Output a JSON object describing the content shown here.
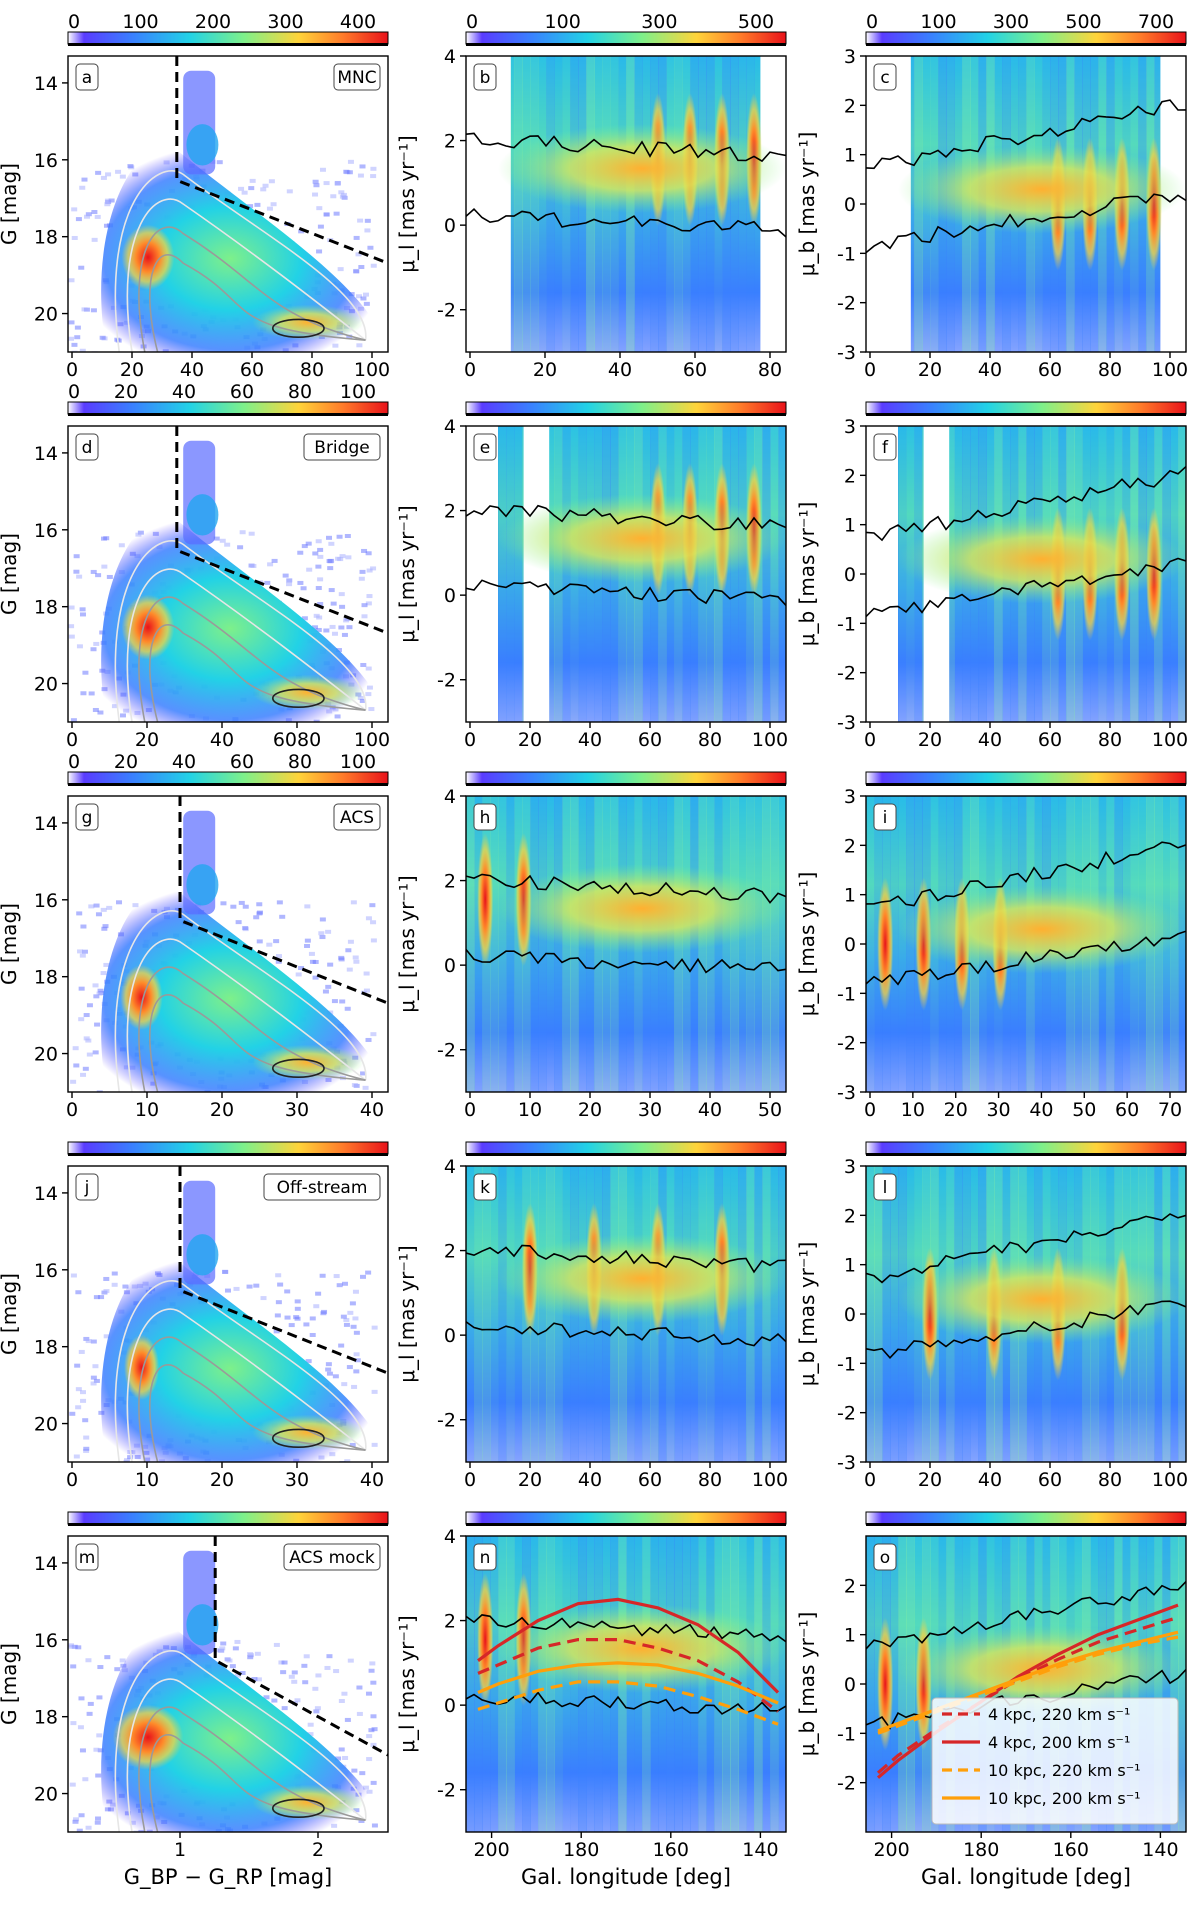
{
  "chart_data": {
    "type": "heatmap",
    "grid": {
      "rows": 5,
      "cols": 3
    },
    "panels": [
      {
        "id": "a",
        "kind": "cmd",
        "label": "MNC",
        "ylabel": "G [mag]",
        "ylim": [
          13.3,
          21
        ],
        "yticks": [
          "14",
          "16",
          "18",
          "20"
        ],
        "cbar_ticks": [
          "0",
          "100",
          "200",
          "300",
          "400"
        ],
        "xticks": [
          "0",
          "20",
          "40",
          "60",
          "80",
          "100"
        ],
        "cut_x": 0.62,
        "blob": 0.15
      },
      {
        "id": "b",
        "kind": "pm",
        "pm": "l",
        "ylabel": "μ_l [mas yr⁻¹]",
        "ylim": [
          -3,
          4
        ],
        "yticks": [
          "-2",
          "0",
          "2",
          "4"
        ],
        "cbar_ticks": [
          "0",
          "100",
          "300",
          "500"
        ],
        "xticks": [
          "0",
          "20",
          "40",
          "60",
          "80"
        ]
      },
      {
        "id": "c",
        "kind": "pm",
        "pm": "b",
        "ylabel": "μ_b [mas yr⁻¹]",
        "ylim": [
          -3,
          3
        ],
        "yticks": [
          "-3",
          "-2",
          "-1",
          "0",
          "1",
          "2",
          "3"
        ],
        "cbar_ticks": [
          "0",
          "100",
          "300",
          "500",
          "700"
        ],
        "xticks": [
          "0",
          "20",
          "40",
          "60",
          "80",
          "100"
        ]
      },
      {
        "id": "d",
        "kind": "cmd",
        "label": "Bridge",
        "ylabel": "G [mag]",
        "ylim": [
          13.3,
          21
        ],
        "yticks": [
          "14",
          "16",
          "18",
          "20"
        ],
        "cbar_ticks": [
          "0",
          "20",
          "40",
          "60",
          "80",
          "100"
        ],
        "xticks": [
          "0",
          "20",
          "40",
          "6080",
          "100"
        ],
        "cut_x": 0.62,
        "blob": 0.15
      },
      {
        "id": "e",
        "kind": "pm",
        "pm": "l",
        "ylabel": "μ_l [mas yr⁻¹]",
        "ylim": [
          -3,
          4
        ],
        "yticks": [
          "-2",
          "0",
          "2",
          "4"
        ],
        "cbar_ticks": [],
        "xticks": [
          "0",
          "20",
          "40",
          "60",
          "80",
          "100"
        ]
      },
      {
        "id": "f",
        "kind": "pm",
        "pm": "b",
        "ylabel": "μ_b [mas yr⁻¹]",
        "ylim": [
          -3,
          3
        ],
        "yticks": [
          "-3",
          "-2",
          "-1",
          "0",
          "1",
          "2",
          "3"
        ],
        "cbar_ticks": [],
        "xticks": [
          "0",
          "20",
          "40",
          "60",
          "80",
          "100"
        ]
      },
      {
        "id": "g",
        "kind": "cmd",
        "label": "ACS",
        "ylabel": "G [mag]",
        "ylim": [
          13.3,
          21
        ],
        "yticks": [
          "14",
          "16",
          "18",
          "20"
        ],
        "cbar_ticks": [
          "0",
          "20",
          "40",
          "60",
          "80",
          "100"
        ],
        "xticks": [
          "0",
          "10",
          "20",
          "30",
          "40"
        ],
        "cut_x": 0.62,
        "blob": 0.12
      },
      {
        "id": "h",
        "kind": "pm",
        "pm": "l",
        "ylabel": "μ_l [mas yr⁻¹]",
        "ylim": [
          -3,
          4
        ],
        "yticks": [
          "-2",
          "0",
          "2",
          "4"
        ],
        "cbar_ticks": [],
        "xticks": [
          "0",
          "10",
          "20",
          "30",
          "40",
          "50"
        ]
      },
      {
        "id": "i",
        "kind": "pm",
        "pm": "b",
        "ylabel": "μ_b [mas yr⁻¹]",
        "ylim": [
          -3,
          3
        ],
        "yticks": [
          "-3",
          "-2",
          "-1",
          "0",
          "1",
          "2",
          "3"
        ],
        "cbar_ticks": [],
        "xticks": [
          "0",
          "10",
          "20",
          "30",
          "40",
          "50",
          "60",
          "70"
        ]
      },
      {
        "id": "j",
        "kind": "cmd",
        "label": "Off-stream",
        "ylabel": "G [mag]",
        "ylim": [
          13.3,
          21
        ],
        "yticks": [
          "14",
          "16",
          "18",
          "20"
        ],
        "cbar_ticks": [],
        "xticks": [
          "0",
          "10",
          "20",
          "30",
          "40"
        ],
        "cut_x": 0.62,
        "blob": 0.1
      },
      {
        "id": "k",
        "kind": "pm",
        "pm": "l",
        "ylabel": "μ_l [mas yr⁻¹]",
        "ylim": [
          -3,
          4
        ],
        "yticks": [
          "-2",
          "0",
          "2",
          "4"
        ],
        "cbar_ticks": [],
        "xticks": [
          "0",
          "20",
          "40",
          "60",
          "80",
          "100"
        ]
      },
      {
        "id": "l",
        "kind": "pm",
        "pm": "b",
        "ylabel": "μ_b [mas yr⁻¹]",
        "ylim": [
          -3,
          3
        ],
        "yticks": [
          "-3",
          "-2",
          "-1",
          "0",
          "1",
          "2",
          "3"
        ],
        "cbar_ticks": [],
        "xticks": [
          "0",
          "20",
          "40",
          "60",
          "80",
          "100"
        ]
      },
      {
        "id": "m",
        "kind": "cmd",
        "label": "ACS mock",
        "ylabel": "G [mag]",
        "ylim": [
          13.3,
          21
        ],
        "yticks": [
          "14",
          "16",
          "18",
          "20"
        ],
        "cbar_ticks": [],
        "xticks": [
          "1",
          "2"
        ],
        "xlabel": "G_BP − G_RP [mag]",
        "cut_x": 0.8,
        "blob": 0.2
      },
      {
        "id": "n",
        "kind": "pm",
        "pm": "l",
        "ylabel": "μ_l [mas yr⁻¹]",
        "ylim": [
          -3,
          4
        ],
        "yticks": [
          "-2",
          "0",
          "2",
          "4"
        ],
        "cbar_ticks": [],
        "xticks": [
          "200",
          "180",
          "160",
          "140"
        ],
        "xlabel": "Gal. longitude [deg]",
        "models": true
      },
      {
        "id": "o",
        "kind": "pm",
        "pm": "b",
        "ylabel": "μ_b [mas yr⁻¹]",
        "ylim": [
          -3,
          3
        ],
        "yticks": [
          "-2",
          "-1",
          "0",
          "1",
          "2"
        ],
        "cbar_ticks": [],
        "xticks": [
          "200",
          "180",
          "160",
          "140"
        ],
        "xlabel": "Gal. longitude [deg]",
        "models": true
      }
    ],
    "legend": {
      "placement": "lower-right of panel o",
      "entries": [
        {
          "label": "4 kpc, 220 km s⁻¹",
          "color": "#d62728",
          "style": "dashed"
        },
        {
          "label": "4 kpc, 200 km s⁻¹",
          "color": "#d62728",
          "style": "solid"
        },
        {
          "label": "10 kpc, 220 km s⁻¹",
          "color": "#ff9f0a",
          "style": "dashed"
        },
        {
          "label": "10 kpc, 200 km s⁻¹",
          "color": "#ff9f0a",
          "style": "solid"
        }
      ]
    },
    "model_curves": {
      "longitude": [
        205,
        200,
        190,
        180,
        170,
        160,
        150,
        140,
        130
      ],
      "mu_l": {
        "4kpc_220": [
          0.75,
          0.95,
          1.35,
          1.55,
          1.55,
          1.35,
          1.05,
          0.55,
          -0.15
        ],
        "4kpc_200": [
          1.05,
          1.4,
          2.0,
          2.4,
          2.5,
          2.3,
          1.9,
          1.25,
          0.3
        ],
        "10kpc_220": [
          -0.1,
          0.05,
          0.35,
          0.55,
          0.55,
          0.45,
          0.2,
          -0.1,
          -0.45
        ],
        "10kpc_200": [
          0.3,
          0.5,
          0.8,
          0.95,
          1.0,
          0.95,
          0.75,
          0.45,
          0.05
        ]
      },
      "mu_b": {
        "4kpc_220": [
          -1.8,
          -1.45,
          -0.9,
          -0.4,
          0.1,
          0.5,
          0.85,
          1.1,
          1.35
        ],
        "4kpc_200": [
          -1.9,
          -1.55,
          -0.95,
          -0.4,
          0.15,
          0.6,
          1.0,
          1.3,
          1.6
        ],
        "10kpc_220": [
          -1.0,
          -0.85,
          -0.55,
          -0.25,
          0.05,
          0.35,
          0.6,
          0.8,
          0.95
        ],
        "10kpc_200": [
          -0.95,
          -0.8,
          -0.5,
          -0.2,
          0.1,
          0.4,
          0.65,
          0.85,
          1.05
        ]
      }
    },
    "colors": {
      "contour_black": "#000000",
      "cut_line": "#000000"
    }
  }
}
